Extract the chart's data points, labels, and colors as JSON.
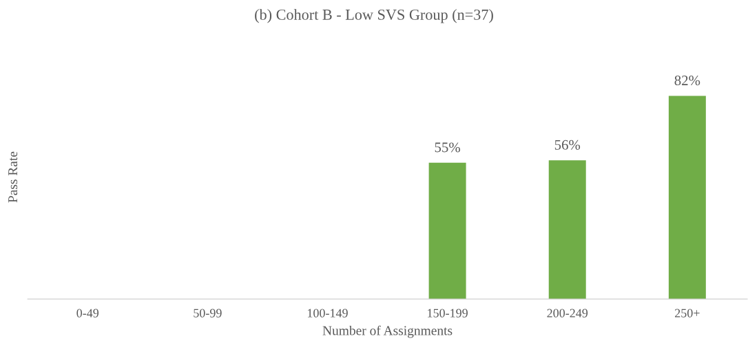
{
  "chart_data": {
    "type": "bar",
    "title": "(b) Cohort B - Low SVS Group (n=37)",
    "xlabel": "Number of Assignments",
    "ylabel": "Pass Rate",
    "categories": [
      "0-49",
      "50-99",
      "100-149",
      "150-199",
      "200-249",
      "250+"
    ],
    "values": [
      null,
      null,
      null,
      55,
      56,
      82
    ],
    "value_labels": [
      null,
      null,
      null,
      "55%",
      "56%",
      "82%"
    ],
    "color": "#70ad47"
  }
}
